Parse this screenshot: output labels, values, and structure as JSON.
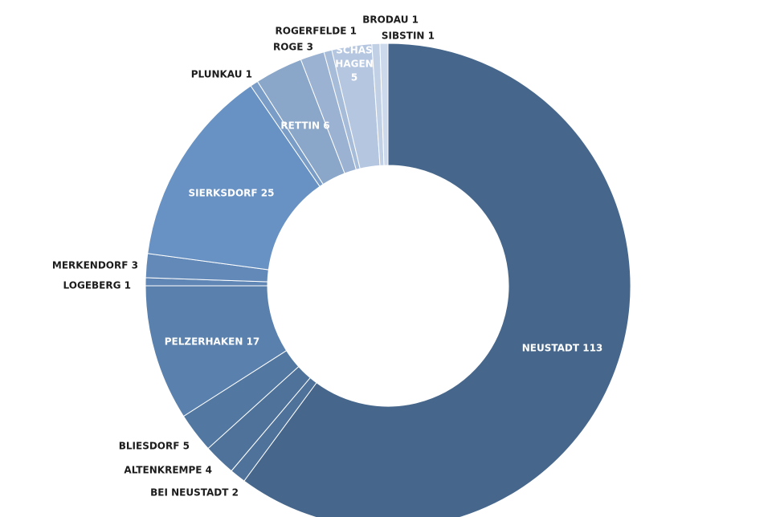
{
  "chart_data": {
    "type": "donut",
    "categories": [
      "NEUSTADT",
      "BEI NEUSTADT",
      "ALTENKREMPE",
      "BLIESDORF",
      "PELZERHAKEN",
      "LOGEBERG",
      "MERKENDORF",
      "SIERKSDORF",
      "PLUNKAU",
      "RETTIN",
      "ROGE",
      "ROGERFELDE",
      "SCHAS HAGEN",
      "BRODAU",
      "SIBSTIN"
    ],
    "values": [
      113,
      2,
      4,
      5,
      17,
      1,
      3,
      25,
      1,
      6,
      3,
      1,
      5,
      1,
      1
    ],
    "colors": [
      "#46678b",
      "#4f729a",
      "#4f729a",
      "#5278a2",
      "#5a80ad",
      "#5f86b5",
      "#6389b8",
      "#6892c3",
      "#7a9dc8",
      "#8aa6c8",
      "#9bb2d2",
      "#a6bcd9",
      "#b5c6e0",
      "#c2d0e6",
      "#ccd8eb"
    ]
  }
}
